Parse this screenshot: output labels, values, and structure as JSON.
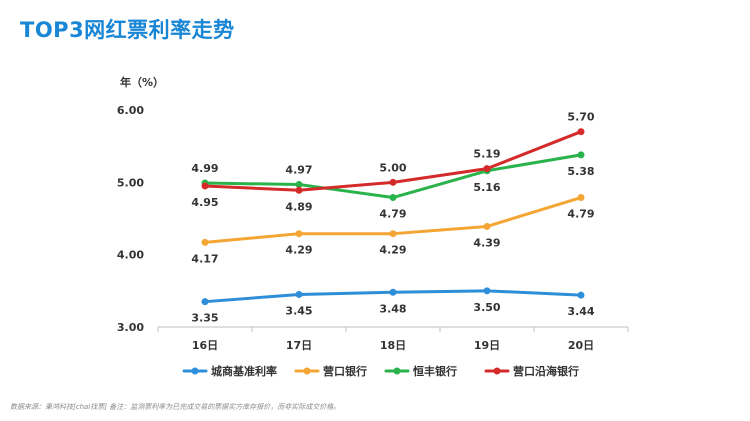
{
  "page": {
    "title": "TOP3网红票利率走势"
  },
  "footnote": "数据来源：秉鸿科技[chai找票] 备注：监测票利率为已完成交易的票据实方库存报价，而非实际成交价格。",
  "chart_data": {
    "type": "line",
    "title": "TOP3网红票利率走势",
    "ylabel": "年（%）",
    "xlabel": "",
    "categories": [
      "16日",
      "17日",
      "18日",
      "19日",
      "20日"
    ],
    "ylim": [
      3.0,
      6.0
    ],
    "yticks": [
      "3.00",
      "4.00",
      "5.00",
      "6.00"
    ],
    "grid": false,
    "legend_position": "bottom",
    "series": [
      {
        "name": "城商基准利率",
        "color": "#2e8fd8",
        "values": [
          3.35,
          3.45,
          3.48,
          3.5,
          3.44
        ],
        "labels": [
          "3.35",
          "3.45",
          "3.48",
          "3.50",
          "3.44"
        ],
        "label_side": [
          "below",
          "below",
          "below",
          "below",
          "below"
        ]
      },
      {
        "name": "营口银行",
        "color": "#f4a533",
        "values": [
          4.17,
          4.29,
          4.29,
          4.39,
          4.79
        ],
        "labels": [
          "4.17",
          "4.29",
          "4.29",
          "4.39",
          "4.79"
        ],
        "label_side": [
          "below",
          "below",
          "below",
          "below",
          "below"
        ]
      },
      {
        "name": "恒丰银行",
        "color": "#2ab34b",
        "values": [
          4.99,
          4.97,
          4.79,
          5.16,
          5.38
        ],
        "labels": [
          "4.99",
          "4.97",
          "4.79",
          "5.16",
          "5.38"
        ],
        "label_side": [
          "above",
          "above",
          "below",
          "below",
          "below"
        ]
      },
      {
        "name": "营口沿海银行",
        "color": "#d42a2a",
        "values": [
          4.95,
          4.89,
          5.0,
          5.19,
          5.7
        ],
        "labels": [
          "4.95",
          "4.89",
          "5.00",
          "5.19",
          "5.70"
        ],
        "label_side": [
          "below",
          "below",
          "above",
          "above",
          "above"
        ]
      }
    ]
  }
}
